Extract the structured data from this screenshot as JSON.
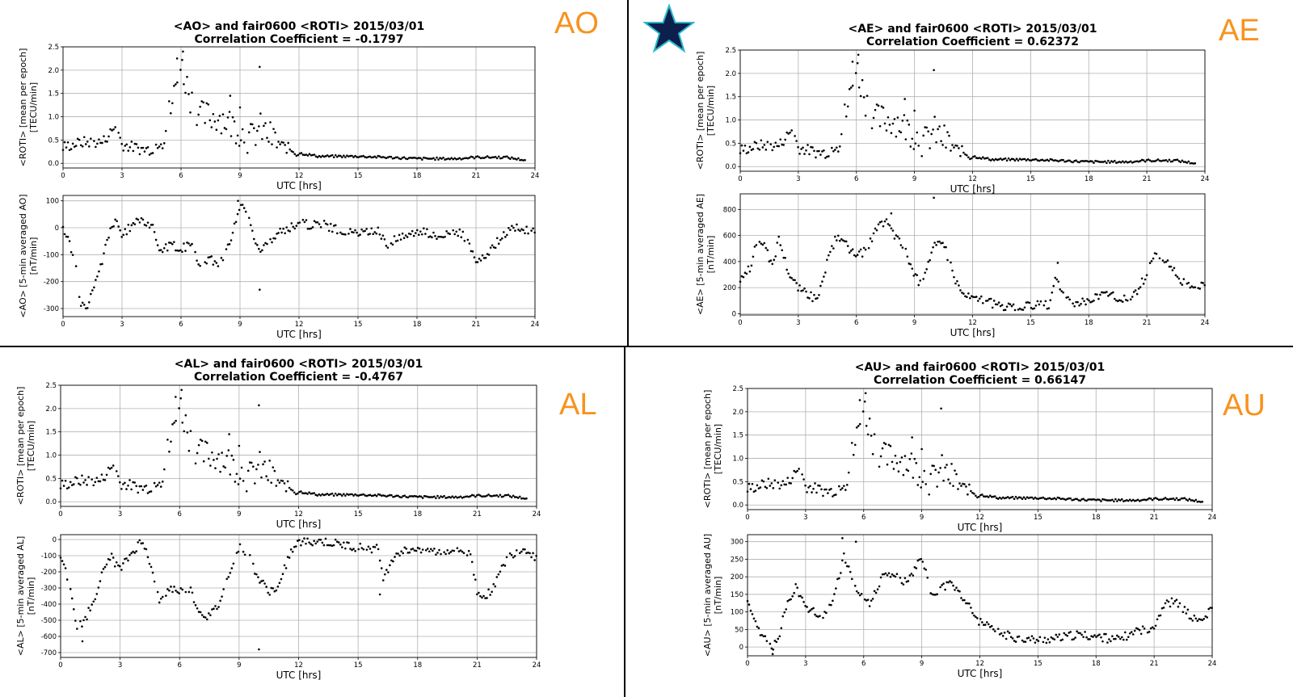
{
  "quadrants": [
    {
      "id": "AO",
      "tag": "AO",
      "title_line1": "<AO> and fair0600 <ROTI> 2015/03/01",
      "title_line2": "Correlation Coefficient = -0.1797",
      "roti_ylabel_1": "<ROTI> [mean per epoch]",
      "roti_ylabel_2": "[TECU/min]",
      "roti_xlabel": "UTC [hrs]",
      "roti_yticks": [
        "0.0",
        "0.5",
        "1.0",
        "1.5",
        "2.0",
        "2.5"
      ],
      "idx_ylabel_1": "<AO> [5-min averaged AO]",
      "idx_ylabel_2": "[nT/min]",
      "idx_xlabel": "UTC [hrs]",
      "idx_yticks": [
        "-300",
        "-200",
        "-100",
        "0",
        "100"
      ]
    },
    {
      "id": "AE",
      "tag": "AE",
      "title_line1": "<AE> and fair0600 <ROTI> 2015/03/01",
      "title_line2": "Correlation Coefficient = 0.62372",
      "roti_ylabel_1": "<ROTI> [mean per epoch]",
      "roti_ylabel_2": "[TECU/min]",
      "roti_xlabel": "UTC [hrs]",
      "roti_yticks": [
        "0.0",
        "0.5",
        "1.0",
        "1.5",
        "2.0",
        "2.5"
      ],
      "idx_ylabel_1": "<AE> [5-min averaged AE]",
      "idx_ylabel_2": "[nT/min]",
      "idx_xlabel": "UTC [hrs]",
      "idx_yticks": [
        "0",
        "200",
        "400",
        "600",
        "800"
      ]
    },
    {
      "id": "AL",
      "tag": "AL",
      "title_line1": "<AL> and fair0600 <ROTI> 2015/03/01",
      "title_line2": "Correlation Coefficient = -0.4767",
      "roti_ylabel_1": "<ROTI> [mean per epoch]",
      "roti_ylabel_2": "[TECU/min]",
      "roti_xlabel": "UTC [hrs]",
      "roti_yticks": [
        "0.0",
        "0.5",
        "1.0",
        "1.5",
        "2.0",
        "2.5"
      ],
      "idx_ylabel_1": "<AL> [5-min averaged AL]",
      "idx_ylabel_2": "[nT/min]",
      "idx_xlabel": "UTC [hrs]",
      "idx_yticks": [
        "-700",
        "-600",
        "-500",
        "-400",
        "-300",
        "-200",
        "-100",
        "0"
      ]
    },
    {
      "id": "AU",
      "tag": "AU",
      "title_line1": "<AU> and fair0600 <ROTI> 2015/03/01",
      "title_line2": "Correlation Coefficient = 0.66147",
      "roti_ylabel_1": "<ROTI> [mean per epoch]",
      "roti_ylabel_2": "[TECU/min]",
      "roti_xlabel": "UTC [hrs]",
      "roti_yticks": [
        "0.0",
        "0.5",
        "1.0",
        "1.5",
        "2.0",
        "2.5"
      ],
      "idx_ylabel_1": "<AU> [5-min averaged AU]",
      "idx_ylabel_2": "[nT/min]",
      "idx_xlabel": "UTC [hrs]",
      "idx_yticks": [
        "0",
        "50",
        "100",
        "150",
        "200",
        "250",
        "300"
      ]
    }
  ],
  "xticks": [
    "0",
    "3",
    "6",
    "9",
    "12",
    "15",
    "18",
    "21",
    "24"
  ],
  "colors": {
    "tag": "#f7931e",
    "star_fill": "#0d1f4c",
    "star_stroke": "#2ab7c9",
    "points": "#000000"
  },
  "chart_data": [
    {
      "type": "scatter",
      "name": "roti",
      "title": "fair0600 <ROTI> 2015/03/01",
      "xlabel": "UTC [hrs]",
      "ylabel": "<ROTI> [mean per epoch] [TECU/min]",
      "xlim": [
        0,
        24
      ],
      "ylim": [
        -0.1,
        2.5
      ],
      "anchors": [
        [
          0,
          0.35
        ],
        [
          1,
          0.45
        ],
        [
          2,
          0.45
        ],
        [
          2.7,
          0.8
        ],
        [
          3,
          0.4
        ],
        [
          4,
          0.3
        ],
        [
          4.5,
          0.3
        ],
        [
          5,
          0.5
        ],
        [
          5.5,
          1.2
        ],
        [
          6,
          2.1
        ],
        [
          6.5,
          1.4
        ],
        [
          7,
          1.0
        ],
        [
          8,
          1.0
        ],
        [
          9,
          0.7
        ],
        [
          9.5,
          0.5
        ],
        [
          10,
          0.75
        ],
        [
          11,
          0.4
        ],
        [
          12,
          0.22
        ],
        [
          13,
          0.15
        ],
        [
          15,
          0.15
        ],
        [
          17,
          0.12
        ],
        [
          18,
          0.1
        ],
        [
          20,
          0.1
        ],
        [
          21,
          0.13
        ],
        [
          22.5,
          0.13
        ],
        [
          23.5,
          0.07
        ]
      ],
      "outliers": [
        [
          5.8,
          2.25
        ],
        [
          6.1,
          2.4
        ],
        [
          10,
          2.07
        ],
        [
          9,
          1.2
        ],
        [
          8.5,
          1.45
        ]
      ]
    },
    {
      "type": "scatter",
      "name": "AO",
      "xlabel": "UTC [hrs]",
      "ylabel": "<AO> [5-min averaged AO] [nT/min]",
      "xlim": [
        0,
        24
      ],
      "ylim": [
        -330,
        120
      ],
      "anchors": [
        [
          0,
          -10
        ],
        [
          0.3,
          -50
        ],
        [
          0.6,
          -120
        ],
        [
          0.9,
          -280
        ],
        [
          1.2,
          -300
        ],
        [
          1.6,
          -220
        ],
        [
          2,
          -120
        ],
        [
          2.4,
          0
        ],
        [
          2.7,
          20
        ],
        [
          3,
          -30
        ],
        [
          3.5,
          10
        ],
        [
          4,
          30
        ],
        [
          4.5,
          10
        ],
        [
          5,
          -90
        ],
        [
          5.5,
          -60
        ],
        [
          6,
          -80
        ],
        [
          6.5,
          -60
        ],
        [
          7,
          -140
        ],
        [
          7.5,
          -120
        ],
        [
          8,
          -130
        ],
        [
          8.5,
          -60
        ],
        [
          9,
          90
        ],
        [
          9.3,
          60
        ],
        [
          10,
          -90
        ],
        [
          10.5,
          -50
        ],
        [
          11,
          -20
        ],
        [
          11.5,
          0
        ],
        [
          12,
          20
        ],
        [
          12.5,
          10
        ],
        [
          13,
          20
        ],
        [
          14,
          -10
        ],
        [
          15,
          -20
        ],
        [
          16,
          -10
        ],
        [
          16.5,
          -60
        ],
        [
          17,
          -40
        ],
        [
          18,
          -10
        ],
        [
          19,
          -30
        ],
        [
          20,
          -10
        ],
        [
          20.5,
          -40
        ],
        [
          21,
          -130
        ],
        [
          21.5,
          -110
        ],
        [
          22,
          -60
        ],
        [
          22.5,
          -20
        ],
        [
          23,
          0
        ],
        [
          24,
          -10
        ]
      ],
      "outliers": [
        [
          10,
          -230
        ],
        [
          8.9,
          100
        ]
      ]
    },
    {
      "type": "scatter",
      "name": "AE",
      "xlabel": "UTC [hrs]",
      "ylabel": "<AE> [5-min averaged AE] [nT/min]",
      "xlim": [
        0,
        24
      ],
      "ylim": [
        -10,
        920
      ],
      "anchors": [
        [
          0,
          240
        ],
        [
          0.5,
          350
        ],
        [
          0.9,
          580
        ],
        [
          1.3,
          500
        ],
        [
          1.7,
          360
        ],
        [
          2,
          580
        ],
        [
          2.5,
          320
        ],
        [
          3,
          200
        ],
        [
          3.5,
          150
        ],
        [
          4,
          100
        ],
        [
          4.5,
          400
        ],
        [
          5,
          600
        ],
        [
          5.5,
          520
        ],
        [
          6,
          450
        ],
        [
          6.5,
          480
        ],
        [
          7,
          640
        ],
        [
          7.5,
          720
        ],
        [
          8,
          600
        ],
        [
          8.5,
          500
        ],
        [
          9,
          300
        ],
        [
          9.3,
          230
        ],
        [
          9.7,
          400
        ],
        [
          10,
          520
        ],
        [
          10.5,
          540
        ],
        [
          11,
          300
        ],
        [
          11.5,
          150
        ],
        [
          12,
          120
        ],
        [
          13,
          80
        ],
        [
          14,
          40
        ],
        [
          14.5,
          60
        ],
        [
          15,
          60
        ],
        [
          16,
          70
        ],
        [
          16.3,
          270
        ],
        [
          16.6,
          150
        ],
        [
          17,
          90
        ],
        [
          17.5,
          80
        ],
        [
          18,
          100
        ],
        [
          19,
          150
        ],
        [
          19.5,
          120
        ],
        [
          20,
          100
        ],
        [
          20.5,
          180
        ],
        [
          21,
          300
        ],
        [
          21.5,
          470
        ],
        [
          22,
          400
        ],
        [
          22.5,
          300
        ],
        [
          23,
          230
        ],
        [
          23.5,
          200
        ],
        [
          24,
          250
        ]
      ],
      "outliers": [
        [
          10,
          890
        ],
        [
          7.8,
          770
        ],
        [
          16.4,
          390
        ]
      ]
    },
    {
      "type": "scatter",
      "name": "AL",
      "xlabel": "UTC [hrs]",
      "ylabel": "<AL> [5-min averaged AL] [nT/min]",
      "xlim": [
        0,
        24
      ],
      "ylim": [
        -730,
        30
      ],
      "anchors": [
        [
          0,
          -100
        ],
        [
          0.4,
          -250
        ],
        [
          0.8,
          -560
        ],
        [
          1.2,
          -500
        ],
        [
          1.6,
          -400
        ],
        [
          2,
          -250
        ],
        [
          2.5,
          -100
        ],
        [
          3,
          -190
        ],
        [
          3.5,
          -100
        ],
        [
          4,
          -20
        ],
        [
          4.3,
          -40
        ],
        [
          4.6,
          -200
        ],
        [
          5,
          -400
        ],
        [
          5.5,
          -300
        ],
        [
          6,
          -320
        ],
        [
          6.5,
          -300
        ],
        [
          7,
          -450
        ],
        [
          7.5,
          -480
        ],
        [
          8,
          -400
        ],
        [
          8.5,
          -200
        ],
        [
          9,
          -50
        ],
        [
          9.5,
          -100
        ],
        [
          10,
          -250
        ],
        [
          10.5,
          -320
        ],
        [
          11,
          -300
        ],
        [
          11.5,
          -100
        ],
        [
          12,
          -20
        ],
        [
          13,
          -10
        ],
        [
          14,
          -30
        ],
        [
          15,
          -50
        ],
        [
          16,
          -60
        ],
        [
          16.3,
          -250
        ],
        [
          16.7,
          -120
        ],
        [
          17,
          -80
        ],
        [
          17.5,
          -70
        ],
        [
          18,
          -50
        ],
        [
          19,
          -80
        ],
        [
          20,
          -60
        ],
        [
          20.7,
          -100
        ],
        [
          21,
          -330
        ],
        [
          21.5,
          -350
        ],
        [
          22,
          -250
        ],
        [
          22.5,
          -120
        ],
        [
          23,
          -70
        ],
        [
          23.5,
          -60
        ],
        [
          24,
          -120
        ]
      ],
      "outliers": [
        [
          10,
          -680
        ],
        [
          1.1,
          -630
        ],
        [
          16.1,
          -340
        ]
      ]
    },
    {
      "type": "scatter",
      "name": "AU",
      "xlabel": "UTC [hrs]",
      "ylabel": "<AU> [5-min averaged AU] [nT/min]",
      "xlim": [
        0,
        24
      ],
      "ylim": [
        -25,
        320
      ],
      "anchors": [
        [
          0,
          120
        ],
        [
          0.3,
          80
        ],
        [
          0.7,
          30
        ],
        [
          1,
          15
        ],
        [
          1.3,
          -5
        ],
        [
          1.6,
          25
        ],
        [
          2,
          120
        ],
        [
          2.5,
          170
        ],
        [
          3,
          110
        ],
        [
          3.5,
          100
        ],
        [
          4,
          90
        ],
        [
          4.5,
          150
        ],
        [
          5,
          260
        ],
        [
          5.5,
          170
        ],
        [
          6,
          150
        ],
        [
          6.3,
          120
        ],
        [
          7,
          200
        ],
        [
          7.5,
          210
        ],
        [
          8,
          180
        ],
        [
          8.5,
          200
        ],
        [
          9,
          260
        ],
        [
          9.5,
          150
        ],
        [
          10,
          170
        ],
        [
          10.5,
          180
        ],
        [
          11,
          150
        ],
        [
          11.5,
          110
        ],
        [
          12,
          70
        ],
        [
          13,
          40
        ],
        [
          14,
          25
        ],
        [
          15,
          20
        ],
        [
          16,
          25
        ],
        [
          17,
          35
        ],
        [
          18,
          30
        ],
        [
          19,
          20
        ],
        [
          20,
          40
        ],
        [
          20.5,
          50
        ],
        [
          21,
          60
        ],
        [
          21.5,
          120
        ],
        [
          22,
          130
        ],
        [
          22.5,
          110
        ],
        [
          23,
          80
        ],
        [
          23.5,
          75
        ],
        [
          24,
          110
        ]
      ],
      "outliers": [
        [
          4.9,
          310
        ],
        [
          5.6,
          300
        ],
        [
          1.3,
          -20
        ]
      ]
    }
  ]
}
